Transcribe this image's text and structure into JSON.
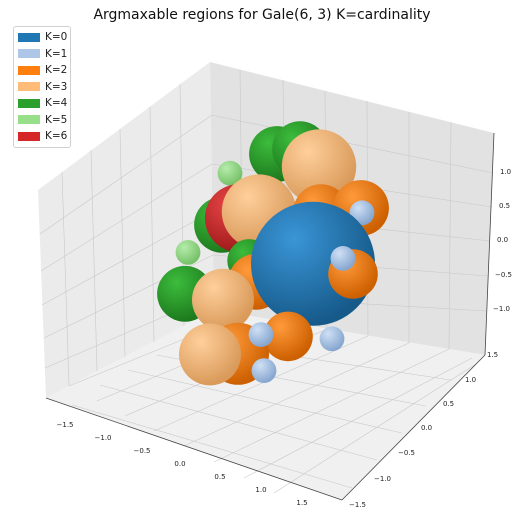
{
  "chart_data": {
    "type": "scatter",
    "title": "Argmaxable regions for Gale(6, 3)    K=cardinality",
    "xlabel": "",
    "ylabel": "",
    "zlabel": "",
    "x_ticks": [
      "−1.5",
      "−1.0",
      "−0.5",
      "0.0",
      "0.5",
      "1.0",
      "1.5"
    ],
    "y_ticks": [
      "−1.5",
      "−1.0",
      "−0.5",
      "0.0",
      "0.5",
      "1.0",
      "1.5"
    ],
    "z_ticks": [
      "1.0",
      "0.5",
      "0.0",
      "−0.5",
      "−1.0"
    ],
    "grid": true,
    "legend_position": "top-left",
    "legend": [
      {
        "label": "K=0",
        "color": "#1f77b4"
      },
      {
        "label": "K=1",
        "color": "#aec7e8"
      },
      {
        "label": "K=2",
        "color": "#ff7f0e"
      },
      {
        "label": "K=3",
        "color": "#ffbb78"
      },
      {
        "label": "K=4",
        "color": "#2ca02c"
      },
      {
        "label": "K=5",
        "color": "#98df8a"
      },
      {
        "label": "K=6",
        "color": "#d62728"
      }
    ],
    "series": [
      {
        "name": "K=0",
        "color": "#1f77b4",
        "points": [
          {
            "x": 0.6,
            "y": 0.3,
            "z": 0.0,
            "size": 1.0
          }
        ]
      },
      {
        "name": "K=1",
        "color": "#aec7e8",
        "points": [
          {
            "x": 1.0,
            "y": 0.8,
            "z": 0.6,
            "size": 0.2
          },
          {
            "x": 1.1,
            "y": 0.3,
            "z": 0.2,
            "size": 0.2
          },
          {
            "x": 0.3,
            "y": 0.6,
            "z": 0.3,
            "size": 0.2
          },
          {
            "x": 0.4,
            "y": -0.5,
            "z": -0.7,
            "size": 0.2
          },
          {
            "x": 0.7,
            "y": -0.8,
            "z": -1.0,
            "size": 0.2
          },
          {
            "x": 1.0,
            "y": 0.2,
            "z": -0.9,
            "size": 0.2
          }
        ]
      },
      {
        "name": "K=2",
        "color": "#ff7f0e",
        "points": [
          {
            "x": 0.9,
            "y": 0.9,
            "z": 0.6,
            "size": 0.45
          },
          {
            "x": 0.4,
            "y": 0.7,
            "z": 0.5,
            "size": 0.45
          },
          {
            "x": -0.1,
            "y": 0.0,
            "z": -0.3,
            "size": 0.45
          },
          {
            "x": 1.1,
            "y": 0.5,
            "z": -0.1,
            "size": 0.4
          },
          {
            "x": 0.1,
            "y": -0.6,
            "z": -1.0,
            "size": 0.5
          },
          {
            "x": 0.6,
            "y": -0.2,
            "z": -0.8,
            "size": 0.4
          }
        ]
      },
      {
        "name": "K=3",
        "color": "#ffbb78",
        "points": [
          {
            "x": 0.2,
            "y": 0.9,
            "z": 1.0,
            "size": 0.6
          },
          {
            "x": -0.3,
            "y": 0.3,
            "z": 0.5,
            "size": 0.6
          },
          {
            "x": -0.4,
            "y": -0.3,
            "z": -0.5,
            "size": 0.5
          },
          {
            "x": -0.2,
            "y": -0.8,
            "z": -1.0,
            "size": 0.5
          }
        ]
      },
      {
        "name": "K=4",
        "color": "#2ca02c",
        "points": [
          {
            "x": -0.5,
            "y": 0.9,
            "z": 1.0,
            "size": 0.45
          },
          {
            "x": -0.2,
            "y": 1.0,
            "z": 1.1,
            "size": 0.45
          },
          {
            "x": -1.0,
            "y": 0.4,
            "z": 0.1,
            "size": 0.45
          },
          {
            "x": -1.2,
            "y": -0.1,
            "z": -0.7,
            "size": 0.45
          },
          {
            "x": -0.3,
            "y": 0.1,
            "z": -0.1,
            "size": 0.35
          }
        ]
      },
      {
        "name": "K=5",
        "color": "#98df8a",
        "points": [
          {
            "x": -1.2,
            "y": 0.8,
            "z": 0.6,
            "size": 0.2
          },
          {
            "x": -1.4,
            "y": 0.2,
            "z": -0.3,
            "size": 0.2
          }
        ]
      },
      {
        "name": "K=6",
        "color": "#d62728",
        "points": [
          {
            "x": -0.8,
            "y": 0.5,
            "z": 0.2,
            "size": 0.55
          }
        ]
      }
    ]
  }
}
